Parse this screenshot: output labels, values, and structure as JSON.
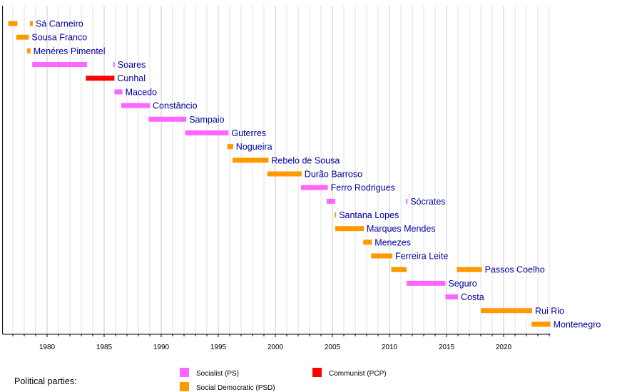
{
  "chart_data": {
    "type": "timeline",
    "xlim": [
      1976.1,
      2024.1
    ],
    "x_ticks": [
      1980,
      1985,
      1990,
      1995,
      2000,
      2005,
      2010,
      2015,
      2020
    ],
    "grid": "vertical, yearly",
    "party_colors": {
      "PS": "#ff66ff",
      "PSD": "#ff9900",
      "PCP": "#ff0000"
    },
    "rows": [
      {
        "name": "Sá Carneiro",
        "segments": [
          {
            "start": 1976.6,
            "end": 1977.4,
            "party": "PSD"
          },
          {
            "start": 1978.5,
            "end": 1978.75,
            "party": "PSD"
          }
        ]
      },
      {
        "name": "Sousa Franco",
        "segments": [
          {
            "start": 1977.3,
            "end": 1978.4,
            "party": "PSD"
          }
        ]
      },
      {
        "name": "Menéres Pimentel",
        "segments": [
          {
            "start": 1978.25,
            "end": 1978.55,
            "party": "PSD"
          }
        ]
      },
      {
        "name": "Soares",
        "segments": [
          {
            "start": 1978.7,
            "end": 1983.5,
            "party": "PS"
          },
          {
            "start": 1985.8,
            "end": 1985.9,
            "party": "PS"
          }
        ]
      },
      {
        "name": "Cunhal",
        "segments": [
          {
            "start": 1983.4,
            "end": 1985.9,
            "party": "PCP"
          }
        ]
      },
      {
        "name": "Macedo",
        "segments": [
          {
            "start": 1985.9,
            "end": 1986.6,
            "party": "PS"
          }
        ]
      },
      {
        "name": "Constâncio",
        "segments": [
          {
            "start": 1986.5,
            "end": 1989.0,
            "party": "PS"
          }
        ]
      },
      {
        "name": "Sampaio",
        "segments": [
          {
            "start": 1988.9,
            "end": 1992.2,
            "party": "PS"
          }
        ]
      },
      {
        "name": "Guterres",
        "segments": [
          {
            "start": 1992.1,
            "end": 1995.9,
            "party": "PS"
          }
        ]
      },
      {
        "name": "Nogueira",
        "segments": [
          {
            "start": 1995.8,
            "end": 1996.3,
            "party": "PSD"
          }
        ]
      },
      {
        "name": "Rebelo de Sousa",
        "segments": [
          {
            "start": 1996.25,
            "end": 1999.4,
            "party": "PSD"
          }
        ]
      },
      {
        "name": "Durão Barroso",
        "segments": [
          {
            "start": 1999.3,
            "end": 2002.3,
            "party": "PSD"
          }
        ]
      },
      {
        "name": "Ferro Rodrigues",
        "segments": [
          {
            "start": 2002.25,
            "end": 2004.6,
            "party": "PS"
          }
        ]
      },
      {
        "name": "Sócrates",
        "segments": [
          {
            "start": 2004.5,
            "end": 2005.25,
            "party": "PS"
          },
          {
            "start": 2011.45,
            "end": 2011.55,
            "party": "PS"
          }
        ]
      },
      {
        "name": "Santana Lopes",
        "segments": [
          {
            "start": 2005.2,
            "end": 2005.3,
            "party": "PSD"
          }
        ]
      },
      {
        "name": "Marques Mendes",
        "segments": [
          {
            "start": 2005.25,
            "end": 2007.75,
            "party": "PSD"
          }
        ]
      },
      {
        "name": "Menezes",
        "segments": [
          {
            "start": 2007.7,
            "end": 2008.45,
            "party": "PSD"
          }
        ]
      },
      {
        "name": "Ferreira Leite",
        "segments": [
          {
            "start": 2008.4,
            "end": 2010.25,
            "party": "PSD"
          }
        ]
      },
      {
        "name": "Passos Coelho",
        "segments": [
          {
            "start": 2010.15,
            "end": 2011.5,
            "party": "PSD"
          },
          {
            "start": 2015.9,
            "end": 2018.1,
            "party": "PSD"
          }
        ]
      },
      {
        "name": "Seguro",
        "segments": [
          {
            "start": 2011.5,
            "end": 2014.9,
            "party": "PS"
          }
        ]
      },
      {
        "name": "Costa",
        "segments": [
          {
            "start": 2014.9,
            "end": 2016.0,
            "party": "PS"
          }
        ]
      },
      {
        "name": "Rui Rio",
        "segments": [
          {
            "start": 2018.0,
            "end": 2022.5,
            "party": "PSD"
          }
        ]
      },
      {
        "name": "Montenegro",
        "segments": [
          {
            "start": 2022.45,
            "end": 2024.1,
            "party": "PSD"
          }
        ]
      }
    ],
    "legend": {
      "title": "Political parties:",
      "entries": [
        {
          "label": "Socialist (PS)",
          "party": "PS"
        },
        {
          "label": "Social Democratic (PSD)",
          "party": "PSD"
        },
        {
          "label": "Communist (PCP)",
          "party": "PCP"
        }
      ],
      "placement": "bottom"
    }
  }
}
